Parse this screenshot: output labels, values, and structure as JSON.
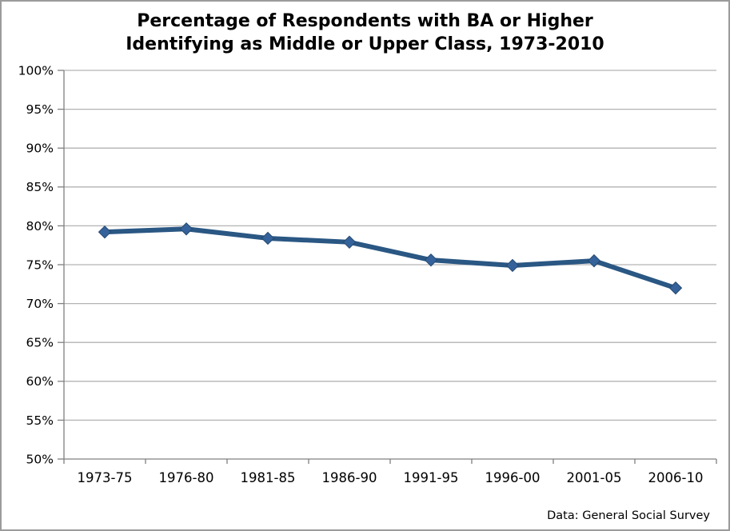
{
  "title": {
    "line1": "Percentage of Respondents with BA or Higher",
    "line2": "Identifying as Middle or Upper Class, 1973-2010"
  },
  "source_note": "Data: General Social Survey",
  "colors": {
    "series_line": "#2a5783",
    "marker_fill": "#35629b",
    "marker_stroke": "#24496e",
    "gridline": "#b3b3b3",
    "axis": "#808080",
    "frame_border": "#9b9b9b",
    "text": "#000000"
  },
  "chart_data": {
    "type": "line",
    "title": "Percentage of Respondents with BA or Higher Identifying as Middle or Upper Class, 1973-2010",
    "categories": [
      "1973-75",
      "1976-80",
      "1981-85",
      "1986-90",
      "1991-95",
      "1996-00",
      "2001-05",
      "2006-10"
    ],
    "series": [
      {
        "name": "BA or higher identifying as middle or upper class",
        "values": [
          79.2,
          79.6,
          78.4,
          77.9,
          75.6,
          74.9,
          75.5,
          72.0
        ]
      }
    ],
    "xlabel": "",
    "ylabel": "",
    "ylim": [
      50,
      100
    ],
    "y_tick_step": 5,
    "y_tick_labels": [
      "100%",
      "95%",
      "90%",
      "85%",
      "80%",
      "75%",
      "70%",
      "65%",
      "60%",
      "55%",
      "50%"
    ],
    "grid": "horizontal",
    "legend": "none",
    "marker": "diamond",
    "annotation": "Data: General Social Survey"
  }
}
